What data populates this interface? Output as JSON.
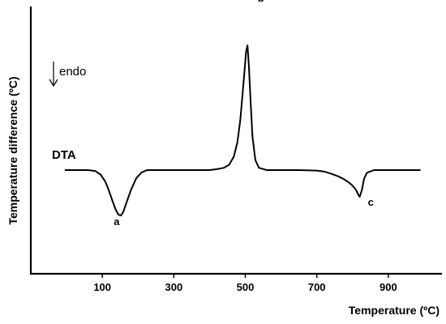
{
  "chart_data": {
    "type": "line",
    "title": "",
    "xlabel": "Temperature (ºC)",
    "ylabel": "Temperature difference (ºC)",
    "xlim": [
      -100,
      1050
    ],
    "ylim": [
      -1.5,
      3.0
    ],
    "xticks": [
      100,
      300,
      500,
      700,
      900
    ],
    "xtick_labels": [
      "100",
      "300",
      "500",
      "700",
      "900"
    ],
    "grid": false,
    "series_label": "DTA",
    "annotation": "endo",
    "annotation_arrow": "down",
    "series": [
      {
        "name": "DTA",
        "x": [
          -5,
          60,
          80,
          95,
          108,
          118,
          128,
          137,
          145,
          152,
          158,
          168,
          180,
          195,
          210,
          225,
          260,
          300,
          350,
          400,
          420,
          440,
          455,
          468,
          478,
          486,
          492,
          498,
          502,
          506,
          510,
          515,
          520,
          528,
          538,
          560,
          600,
          650,
          700,
          720,
          740,
          760,
          775,
          790,
          800,
          810,
          816,
          820,
          826,
          832,
          840,
          860,
          900,
          950,
          990
        ],
        "y": [
          0,
          0,
          -0.02,
          -0.1,
          -0.25,
          -0.45,
          -0.68,
          -0.88,
          -1.0,
          -1.02,
          -0.95,
          -0.72,
          -0.45,
          -0.18,
          -0.05,
          0,
          0,
          0,
          0,
          0,
          0.02,
          0.05,
          0.12,
          0.3,
          0.62,
          1.1,
          1.65,
          2.2,
          2.6,
          2.75,
          2.3,
          1.5,
          0.75,
          0.22,
          0.05,
          0,
          0,
          0,
          -0.01,
          -0.03,
          -0.08,
          -0.14,
          -0.2,
          -0.28,
          -0.35,
          -0.45,
          -0.55,
          -0.6,
          -0.45,
          -0.2,
          -0.06,
          0,
          0,
          0,
          0
        ]
      }
    ],
    "peaks": [
      {
        "label": "a",
        "x": 150,
        "y": -1.0
      },
      {
        "label": "b",
        "x": 505,
        "y": 2.75
      },
      {
        "label": "c",
        "x": 820,
        "y": -0.6
      }
    ]
  }
}
